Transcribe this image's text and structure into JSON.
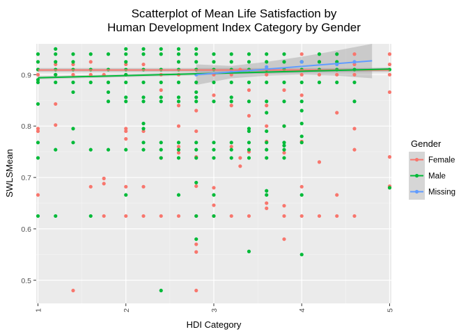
{
  "chart_data": {
    "type": "scatter",
    "title": [
      "Scatterplot of Mean Life Satisfaction by",
      "Human Development Index Category by Gender"
    ],
    "xlabel": "HDI Category",
    "ylabel": "SWLSMean",
    "xlim": [
      0.98,
      5.02
    ],
    "ylim": [
      0.455,
      0.96
    ],
    "x_ticks": [
      "1",
      "2",
      "3",
      "4",
      "5"
    ],
    "y_ticks": [
      "0.5",
      "0.6",
      "0.7",
      "0.8",
      "0.9"
    ],
    "grid": true,
    "legend": {
      "title": "Gender",
      "position": "right",
      "entries": [
        "Female",
        "Male",
        "Missing"
      ]
    },
    "colors": {
      "Female": "#F8766D",
      "Male": "#00BA38",
      "Missing": "#619CFF",
      "panel": "#EBEBEB",
      "band": "#999999"
    },
    "series": [
      {
        "name": "Female",
        "points": [
          [
            1.0,
            0.666
          ],
          [
            1.0,
            0.79
          ],
          [
            1.0,
            0.795
          ],
          [
            1.0,
            0.9
          ],
          [
            1.0,
            0.91
          ],
          [
            1.2,
            0.843
          ],
          [
            1.2,
            0.802
          ],
          [
            1.2,
            0.9
          ],
          [
            1.2,
            0.92
          ],
          [
            1.4,
            0.48
          ],
          [
            1.4,
            0.92
          ],
          [
            1.4,
            0.9
          ],
          [
            1.6,
            0.682
          ],
          [
            1.6,
            0.9
          ],
          [
            1.6,
            0.925
          ],
          [
            1.75,
            0.698
          ],
          [
            1.75,
            0.688
          ],
          [
            1.75,
            0.625
          ],
          [
            1.75,
            0.9
          ],
          [
            2.0,
            0.682
          ],
          [
            2.0,
            0.625
          ],
          [
            2.0,
            0.795
          ],
          [
            2.0,
            0.79
          ],
          [
            2.0,
            0.775
          ],
          [
            2.0,
            0.9
          ],
          [
            2.0,
            0.92
          ],
          [
            2.2,
            0.682
          ],
          [
            2.2,
            0.625
          ],
          [
            2.2,
            0.79
          ],
          [
            2.2,
            0.92
          ],
          [
            2.4,
            0.625
          ],
          [
            2.4,
            0.738
          ],
          [
            2.4,
            0.87
          ],
          [
            2.4,
            0.9
          ],
          [
            2.6,
            0.625
          ],
          [
            2.6,
            0.8
          ],
          [
            2.6,
            0.76
          ],
          [
            2.6,
            0.748
          ],
          [
            2.6,
            0.84
          ],
          [
            2.6,
            0.9
          ],
          [
            2.8,
            0.48
          ],
          [
            2.8,
            0.555
          ],
          [
            2.8,
            0.57
          ],
          [
            2.8,
            0.683
          ],
          [
            2.8,
            0.625
          ],
          [
            2.8,
            0.74
          ],
          [
            2.8,
            0.79
          ],
          [
            2.8,
            0.83
          ],
          [
            2.8,
            0.91
          ],
          [
            3.0,
            0.646
          ],
          [
            3.0,
            0.625
          ],
          [
            3.0,
            0.68
          ],
          [
            3.0,
            0.86
          ],
          [
            3.0,
            0.9
          ],
          [
            3.2,
            0.625
          ],
          [
            3.2,
            0.76
          ],
          [
            3.2,
            0.84
          ],
          [
            3.2,
            0.9
          ],
          [
            3.3,
            0.722
          ],
          [
            3.3,
            0.738
          ],
          [
            3.3,
            0.91
          ],
          [
            3.4,
            0.625
          ],
          [
            3.4,
            0.75
          ],
          [
            3.4,
            0.82
          ],
          [
            3.4,
            0.87
          ],
          [
            3.6,
            0.64
          ],
          [
            3.6,
            0.65
          ],
          [
            3.6,
            0.77
          ],
          [
            3.6,
            0.8
          ],
          [
            3.6,
            0.84
          ],
          [
            3.6,
            0.9
          ],
          [
            3.8,
            0.58
          ],
          [
            3.8,
            0.645
          ],
          [
            3.8,
            0.625
          ],
          [
            3.8,
            0.748
          ],
          [
            3.8,
            0.8
          ],
          [
            3.8,
            0.87
          ],
          [
            4.0,
            0.625
          ],
          [
            4.0,
            0.682
          ],
          [
            4.0,
            0.77
          ],
          [
            4.0,
            0.86
          ],
          [
            4.0,
            0.9
          ],
          [
            4.0,
            0.925
          ],
          [
            4.0,
            0.94
          ],
          [
            4.2,
            0.625
          ],
          [
            4.2,
            0.73
          ],
          [
            4.2,
            0.9
          ],
          [
            4.2,
            0.925
          ],
          [
            4.4,
            0.625
          ],
          [
            4.4,
            0.666
          ],
          [
            4.4,
            0.826
          ],
          [
            4.4,
            0.9
          ],
          [
            4.6,
            0.625
          ],
          [
            4.6,
            0.754
          ],
          [
            4.6,
            0.795
          ],
          [
            4.6,
            0.9
          ],
          [
            4.6,
            0.92
          ],
          [
            4.6,
            0.94
          ],
          [
            5.0,
            0.683
          ],
          [
            5.0,
            0.68
          ],
          [
            5.0,
            0.74
          ],
          [
            5.0,
            0.866
          ],
          [
            5.0,
            0.9
          ],
          [
            5.0,
            0.92
          ],
          [
            5.0,
            0.94
          ]
        ]
      },
      {
        "name": "Male",
        "points": [
          [
            1.0,
            0.625
          ],
          [
            1.0,
            0.738
          ],
          [
            1.0,
            0.768
          ],
          [
            1.0,
            0.843
          ],
          [
            1.0,
            0.885
          ],
          [
            1.0,
            0.89
          ],
          [
            1.0,
            0.91
          ],
          [
            1.0,
            0.925
          ],
          [
            1.0,
            0.94
          ],
          [
            1.2,
            0.625
          ],
          [
            1.2,
            0.754
          ],
          [
            1.2,
            0.885
          ],
          [
            1.2,
            0.9
          ],
          [
            1.2,
            0.91
          ],
          [
            1.2,
            0.925
          ],
          [
            1.2,
            0.94
          ],
          [
            1.2,
            0.95
          ],
          [
            1.4,
            0.768
          ],
          [
            1.4,
            0.795
          ],
          [
            1.4,
            0.866
          ],
          [
            1.4,
            0.885
          ],
          [
            1.4,
            0.91
          ],
          [
            1.4,
            0.925
          ],
          [
            1.4,
            0.94
          ],
          [
            1.6,
            0.625
          ],
          [
            1.6,
            0.754
          ],
          [
            1.6,
            0.885
          ],
          [
            1.6,
            0.91
          ],
          [
            1.6,
            0.94
          ],
          [
            1.8,
            0.754
          ],
          [
            1.8,
            0.848
          ],
          [
            1.8,
            0.866
          ],
          [
            1.8,
            0.885
          ],
          [
            1.8,
            0.91
          ],
          [
            1.8,
            0.94
          ],
          [
            2.0,
            0.666
          ],
          [
            2.0,
            0.754
          ],
          [
            2.0,
            0.848
          ],
          [
            2.0,
            0.856
          ],
          [
            2.0,
            0.885
          ],
          [
            2.0,
            0.9
          ],
          [
            2.0,
            0.91
          ],
          [
            2.0,
            0.925
          ],
          [
            2.0,
            0.94
          ],
          [
            2.0,
            0.95
          ],
          [
            2.2,
            0.754
          ],
          [
            2.2,
            0.768
          ],
          [
            2.2,
            0.795
          ],
          [
            2.2,
            0.805
          ],
          [
            2.2,
            0.848
          ],
          [
            2.2,
            0.856
          ],
          [
            2.2,
            0.885
          ],
          [
            2.2,
            0.91
          ],
          [
            2.2,
            0.94
          ],
          [
            2.2,
            0.95
          ],
          [
            2.4,
            0.48
          ],
          [
            2.4,
            0.738
          ],
          [
            2.4,
            0.754
          ],
          [
            2.4,
            0.768
          ],
          [
            2.4,
            0.848
          ],
          [
            2.4,
            0.856
          ],
          [
            2.4,
            0.885
          ],
          [
            2.4,
            0.91
          ],
          [
            2.4,
            0.94
          ],
          [
            2.4,
            0.95
          ],
          [
            2.6,
            0.666
          ],
          [
            2.6,
            0.738
          ],
          [
            2.6,
            0.754
          ],
          [
            2.6,
            0.768
          ],
          [
            2.6,
            0.848
          ],
          [
            2.6,
            0.856
          ],
          [
            2.6,
            0.885
          ],
          [
            2.6,
            0.91
          ],
          [
            2.6,
            0.925
          ],
          [
            2.6,
            0.94
          ],
          [
            2.6,
            0.95
          ],
          [
            2.8,
            0.58
          ],
          [
            2.8,
            0.625
          ],
          [
            2.8,
            0.69
          ],
          [
            2.8,
            0.738
          ],
          [
            2.8,
            0.754
          ],
          [
            2.8,
            0.768
          ],
          [
            2.8,
            0.848
          ],
          [
            2.8,
            0.856
          ],
          [
            2.8,
            0.866
          ],
          [
            2.8,
            0.885
          ],
          [
            2.8,
            0.91
          ],
          [
            2.8,
            0.925
          ],
          [
            2.8,
            0.94
          ],
          [
            2.8,
            0.95
          ],
          [
            3.0,
            0.625
          ],
          [
            3.0,
            0.666
          ],
          [
            3.0,
            0.738
          ],
          [
            3.0,
            0.754
          ],
          [
            3.0,
            0.768
          ],
          [
            3.0,
            0.848
          ],
          [
            3.0,
            0.885
          ],
          [
            3.0,
            0.91
          ],
          [
            3.0,
            0.925
          ],
          [
            3.0,
            0.94
          ],
          [
            3.2,
            0.738
          ],
          [
            3.2,
            0.754
          ],
          [
            3.2,
            0.768
          ],
          [
            3.2,
            0.848
          ],
          [
            3.2,
            0.856
          ],
          [
            3.2,
            0.885
          ],
          [
            3.2,
            0.91
          ],
          [
            3.2,
            0.925
          ],
          [
            3.2,
            0.94
          ],
          [
            3.4,
            0.556
          ],
          [
            3.4,
            0.738
          ],
          [
            3.4,
            0.754
          ],
          [
            3.4,
            0.768
          ],
          [
            3.4,
            0.79
          ],
          [
            3.4,
            0.795
          ],
          [
            3.4,
            0.848
          ],
          [
            3.4,
            0.885
          ],
          [
            3.4,
            0.91
          ],
          [
            3.4,
            0.925
          ],
          [
            3.4,
            0.94
          ],
          [
            3.6,
            0.666
          ],
          [
            3.6,
            0.674
          ],
          [
            3.6,
            0.738
          ],
          [
            3.6,
            0.754
          ],
          [
            3.6,
            0.768
          ],
          [
            3.6,
            0.79
          ],
          [
            3.6,
            0.826
          ],
          [
            3.6,
            0.848
          ],
          [
            3.6,
            0.885
          ],
          [
            3.6,
            0.91
          ],
          [
            3.6,
            0.925
          ],
          [
            3.6,
            0.94
          ],
          [
            3.8,
            0.738
          ],
          [
            3.8,
            0.754
          ],
          [
            3.8,
            0.762
          ],
          [
            3.8,
            0.768
          ],
          [
            3.8,
            0.8
          ],
          [
            3.8,
            0.848
          ],
          [
            3.8,
            0.885
          ],
          [
            3.8,
            0.91
          ],
          [
            3.8,
            0.925
          ],
          [
            3.8,
            0.94
          ],
          [
            4.0,
            0.55
          ],
          [
            4.0,
            0.666
          ],
          [
            4.0,
            0.768
          ],
          [
            4.0,
            0.78
          ],
          [
            4.0,
            0.805
          ],
          [
            4.0,
            0.83
          ],
          [
            4.0,
            0.848
          ],
          [
            4.0,
            0.885
          ],
          [
            4.0,
            0.91
          ],
          [
            4.0,
            0.925
          ],
          [
            4.2,
            0.885
          ],
          [
            4.2,
            0.91
          ],
          [
            4.2,
            0.925
          ],
          [
            4.2,
            0.94
          ],
          [
            4.4,
            0.885
          ],
          [
            4.4,
            0.91
          ],
          [
            4.4,
            0.925
          ],
          [
            4.4,
            0.94
          ],
          [
            4.6,
            0.848
          ],
          [
            4.6,
            0.885
          ],
          [
            4.6,
            0.91
          ],
          [
            5.0,
            0.68
          ],
          [
            5.0,
            0.91
          ]
        ]
      },
      {
        "name": "Missing",
        "points": [
          [
            2.8,
            0.9
          ],
          [
            3.2,
            0.905
          ],
          [
            3.6,
            0.915
          ],
          [
            4.0,
            0.925
          ],
          [
            4.4,
            0.92
          ],
          [
            4.6,
            0.925
          ]
        ]
      }
    ],
    "trend_lines": [
      {
        "name": "Female",
        "x": [
          1.0,
          5.0
        ],
        "y": [
          0.909,
          0.909
        ],
        "band": 0.004
      },
      {
        "name": "Male",
        "x": [
          1.0,
          5.0
        ],
        "y": [
          0.894,
          0.911
        ],
        "band": 0.003
      },
      {
        "name": "Missing",
        "x": [
          2.8,
          4.8
        ],
        "y": [
          0.9,
          0.927
        ],
        "band_x": [
          2.8,
          3.2,
          3.6,
          4.0,
          4.4,
          4.8
        ],
        "band_lo": [
          0.88,
          0.893,
          0.898,
          0.9,
          0.898,
          0.893
        ],
        "band_hi": [
          0.92,
          0.917,
          0.925,
          0.935,
          0.947,
          0.96
        ]
      }
    ]
  }
}
